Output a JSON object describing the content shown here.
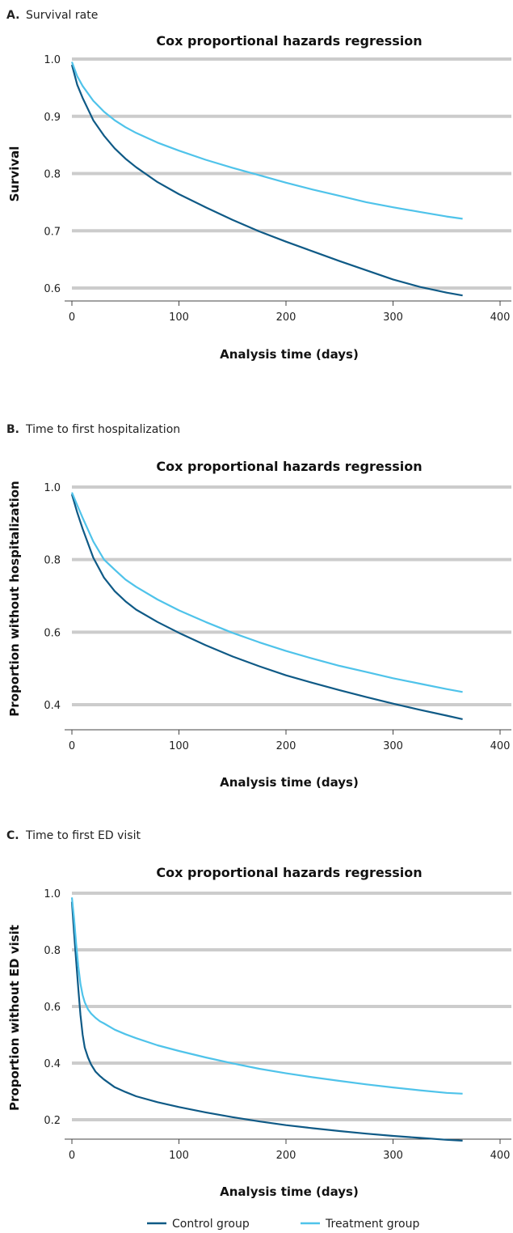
{
  "colors": {
    "control": "#0f5a86",
    "treatment": "#4fc3ea",
    "grid": "#cccccc",
    "axis": "#444444"
  },
  "legend": {
    "control_label": "Control group",
    "treatment_label": "Treatment group"
  },
  "chart_data": [
    {
      "type": "line",
      "panel_letter": "A.",
      "panel_title": "Survival rate",
      "title": "Cox proportional hazards regression",
      "xlabel": "Analysis time (days)",
      "ylabel": "Survival",
      "xlim": [
        0,
        400
      ],
      "ylim": [
        0.58,
        1.0
      ],
      "xticks": [
        0,
        100,
        200,
        300,
        400
      ],
      "yticks": [
        0.6,
        0.7,
        0.8,
        0.9,
        1.0
      ],
      "ytick_labels": [
        "0.6",
        "0.7",
        "0.8",
        "0.9",
        "1.0"
      ],
      "grid": true,
      "series": [
        {
          "name": "Control group",
          "x": [
            0,
            5,
            10,
            20,
            30,
            40,
            50,
            60,
            80,
            100,
            125,
            150,
            175,
            200,
            225,
            250,
            275,
            300,
            325,
            350,
            365
          ],
          "y": [
            0.99,
            0.955,
            0.932,
            0.893,
            0.866,
            0.844,
            0.826,
            0.811,
            0.785,
            0.764,
            0.741,
            0.719,
            0.699,
            0.681,
            0.664,
            0.647,
            0.631,
            0.615,
            0.602,
            0.592,
            0.587
          ]
        },
        {
          "name": "Treatment group",
          "x": [
            0,
            5,
            10,
            20,
            30,
            40,
            50,
            60,
            80,
            100,
            125,
            150,
            175,
            200,
            225,
            250,
            275,
            300,
            325,
            350,
            365
          ],
          "y": [
            0.995,
            0.97,
            0.953,
            0.927,
            0.908,
            0.893,
            0.881,
            0.871,
            0.854,
            0.84,
            0.824,
            0.81,
            0.797,
            0.784,
            0.772,
            0.761,
            0.75,
            0.741,
            0.733,
            0.725,
            0.721
          ]
        }
      ]
    },
    {
      "type": "line",
      "panel_letter": "B.",
      "panel_title": "Time to first hospitalization",
      "title": "Cox proportional hazards regression",
      "xlabel": "Analysis time (days)",
      "ylabel": "Proportion without hospitalization",
      "xlim": [
        0,
        400
      ],
      "ylim": [
        0.34,
        1.0
      ],
      "xticks": [
        0,
        100,
        200,
        300,
        400
      ],
      "yticks": [
        0.4,
        0.6,
        0.8,
        1.0
      ],
      "ytick_labels": [
        "0.4",
        "0.6",
        "0.8",
        "1.0"
      ],
      "grid": true,
      "series": [
        {
          "name": "Control group",
          "x": [
            0,
            5,
            10,
            20,
            30,
            40,
            50,
            60,
            80,
            100,
            125,
            150,
            175,
            200,
            225,
            250,
            275,
            300,
            325,
            350,
            365
          ],
          "y": [
            0.98,
            0.93,
            0.885,
            0.805,
            0.75,
            0.713,
            0.685,
            0.662,
            0.628,
            0.598,
            0.564,
            0.533,
            0.506,
            0.481,
            0.46,
            0.44,
            0.421,
            0.403,
            0.386,
            0.37,
            0.36
          ]
        },
        {
          "name": "Treatment group",
          "x": [
            0,
            5,
            10,
            20,
            30,
            40,
            50,
            60,
            80,
            100,
            125,
            150,
            175,
            200,
            225,
            250,
            275,
            300,
            325,
            350,
            365
          ],
          "y": [
            0.985,
            0.95,
            0.915,
            0.85,
            0.8,
            0.772,
            0.745,
            0.725,
            0.69,
            0.66,
            0.628,
            0.598,
            0.572,
            0.548,
            0.527,
            0.507,
            0.49,
            0.473,
            0.458,
            0.443,
            0.435
          ]
        }
      ]
    },
    {
      "type": "line",
      "panel_letter": "C.",
      "panel_title": "Time to first ED visit",
      "title": "Cox proportional hazards regression",
      "xlabel": "Analysis time (days)",
      "ylabel": "Proportion without ED visit",
      "xlim": [
        0,
        400
      ],
      "ylim": [
        0.1,
        1.0
      ],
      "xticks": [
        0,
        100,
        200,
        300,
        400
      ],
      "yticks": [
        0.2,
        0.4,
        0.6,
        0.8,
        1.0
      ],
      "ytick_labels": [
        "0.2",
        "0.4",
        "0.6",
        "0.8",
        "1.0"
      ],
      "grid": true,
      "series": [
        {
          "name": "Control group",
          "x": [
            0,
            2,
            4,
            6,
            8,
            10,
            12,
            15,
            18,
            22,
            26,
            30,
            40,
            50,
            60,
            80,
            100,
            125,
            150,
            175,
            200,
            225,
            250,
            275,
            300,
            325,
            350,
            365
          ],
          "y": [
            0.97,
            0.86,
            0.76,
            0.66,
            0.57,
            0.5,
            0.455,
            0.42,
            0.395,
            0.37,
            0.355,
            0.342,
            0.315,
            0.298,
            0.283,
            0.262,
            0.245,
            0.226,
            0.209,
            0.194,
            0.181,
            0.17,
            0.16,
            0.151,
            0.143,
            0.136,
            0.129,
            0.126
          ]
        },
        {
          "name": "Treatment group",
          "x": [
            0,
            2,
            4,
            6,
            8,
            10,
            12,
            15,
            18,
            22,
            26,
            30,
            40,
            50,
            60,
            80,
            100,
            125,
            150,
            175,
            200,
            225,
            250,
            275,
            300,
            325,
            350,
            365
          ],
          "y": [
            0.985,
            0.91,
            0.82,
            0.74,
            0.68,
            0.64,
            0.615,
            0.59,
            0.575,
            0.56,
            0.548,
            0.54,
            0.518,
            0.502,
            0.488,
            0.463,
            0.443,
            0.42,
            0.399,
            0.38,
            0.364,
            0.35,
            0.337,
            0.325,
            0.314,
            0.304,
            0.295,
            0.292
          ]
        }
      ]
    }
  ]
}
